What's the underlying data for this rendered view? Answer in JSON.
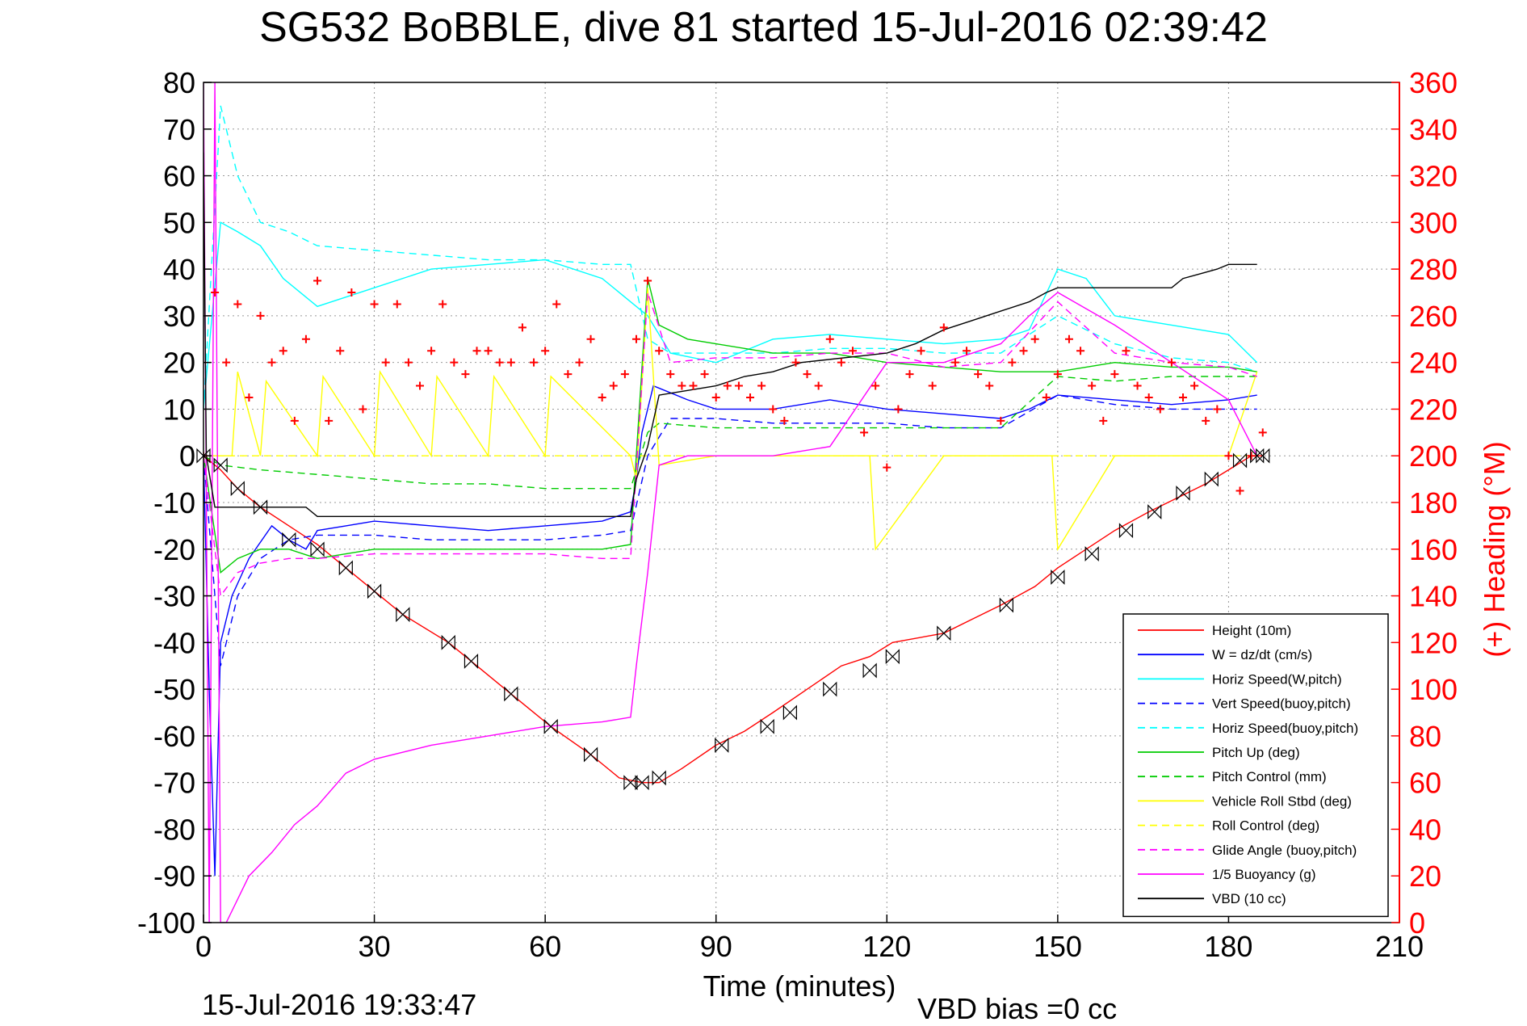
{
  "title": "SG532 BoBBLE, dive 81 started 15-Jul-2016 02:39:42",
  "footer": {
    "timestamp": "15-Jul-2016 19:33:47",
    "vbd_bias": "VBD bias =0 cc"
  },
  "chart_data": {
    "type": "line",
    "title": "SG532 BoBBLE, dive 81 started 15-Jul-2016 02:39:42",
    "xlabel": "Time (minutes)",
    "ylabel": "",
    "y2label": "(+) Heading (°M)",
    "xlim": [
      0,
      210
    ],
    "ylim": [
      -100,
      80
    ],
    "y2lim": [
      0,
      360
    ],
    "x_ticks": [
      "0",
      "30",
      "60",
      "90",
      "120",
      "150",
      "180",
      "210"
    ],
    "y_ticks": [
      "80",
      "70",
      "60",
      "50",
      "40",
      "30",
      "20",
      "10",
      "0",
      "-10",
      "-20",
      "-30",
      "-40",
      "-50",
      "-60",
      "-70",
      "-80",
      "-90",
      "-100"
    ],
    "y2_ticks": [
      "360",
      "340",
      "320",
      "300",
      "280",
      "260",
      "240",
      "220",
      "200",
      "180",
      "160",
      "140",
      "120",
      "100",
      "80",
      "60",
      "40",
      "20",
      "0"
    ],
    "grid": true,
    "legend_position": "bottom-right",
    "colors": {
      "axis_left": "#000000",
      "axis_right": "#ff0000",
      "title": "#000000"
    },
    "series": [
      {
        "name": "Height (10m)",
        "color": "#ff0000",
        "dash": "solid",
        "marker": "bowtie",
        "x": [
          0,
          3,
          6,
          10,
          15,
          20,
          25,
          30,
          35,
          43,
          47,
          54,
          61,
          68,
          73,
          77,
          80,
          84,
          90,
          95,
          100,
          106,
          112,
          117,
          121,
          130,
          135,
          140,
          146,
          150,
          155,
          160,
          166,
          171,
          176,
          180,
          184,
          186
        ],
        "y": [
          0,
          -3,
          -7,
          -11,
          -15,
          -19,
          -24,
          -29,
          -34,
          -40,
          -44,
          -51,
          -58,
          -64,
          -69,
          -70,
          -70,
          -67,
          -62,
          -59,
          -55,
          -50,
          -45,
          -43,
          -40,
          -38,
          -35,
          -32,
          -28,
          -24,
          -20,
          -16,
          -12,
          -9,
          -6,
          -3,
          0,
          0
        ]
      },
      {
        "name": "W = dz/dt (cm/s)",
        "color": "#0000ff",
        "dash": "solid",
        "x": [
          0,
          1,
          2,
          3,
          5,
          8,
          12,
          15,
          18,
          20,
          25,
          30,
          40,
          50,
          60,
          70,
          75,
          76,
          77,
          79,
          81,
          85,
          90,
          100,
          110,
          120,
          130,
          140,
          145,
          150,
          160,
          170,
          180,
          185
        ],
        "y": [
          0,
          -50,
          -90,
          -40,
          -30,
          -22,
          -15,
          -18,
          -20,
          -16,
          -15,
          -14,
          -15,
          -16,
          -15,
          -14,
          -12,
          -5,
          5,
          15,
          14,
          12,
          10,
          10,
          12,
          10,
          9,
          8,
          10,
          13,
          12,
          11,
          12,
          13
        ]
      },
      {
        "name": "Horiz Speed(W,pitch)",
        "color": "#00ffff",
        "dash": "solid",
        "x": [
          0,
          3,
          6,
          10,
          14,
          20,
          30,
          40,
          50,
          60,
          70,
          75,
          78,
          82,
          90,
          100,
          110,
          120,
          130,
          140,
          145,
          150,
          155,
          160,
          170,
          180,
          185
        ],
        "y": [
          10,
          50,
          48,
          45,
          38,
          32,
          36,
          40,
          41,
          42,
          38,
          33,
          30,
          22,
          20,
          25,
          26,
          25,
          24,
          25,
          27,
          40,
          38,
          30,
          28,
          26,
          20
        ]
      },
      {
        "name": "Vert Speed(buoy,pitch)",
        "color": "#0000ff",
        "dash": "dashed",
        "x": [
          0,
          3,
          6,
          10,
          15,
          20,
          30,
          40,
          50,
          60,
          70,
          75,
          78,
          82,
          90,
          100,
          110,
          120,
          130,
          140,
          150,
          160,
          170,
          180,
          185
        ],
        "y": [
          0,
          -45,
          -30,
          -22,
          -18,
          -17,
          -17,
          -18,
          -18,
          -18,
          -17,
          -16,
          0,
          8,
          8,
          7,
          7,
          7,
          6,
          6,
          13,
          11,
          10,
          10,
          10
        ]
      },
      {
        "name": "Horiz Speed(buoy,pitch)",
        "color": "#00ffff",
        "dash": "dashed",
        "x": [
          0,
          3,
          6,
          10,
          15,
          20,
          30,
          40,
          50,
          60,
          70,
          75,
          78,
          82,
          90,
          100,
          110,
          120,
          130,
          140,
          150,
          160,
          170,
          180,
          185
        ],
        "y": [
          10,
          75,
          60,
          50,
          48,
          45,
          44,
          43,
          42,
          42,
          41,
          41,
          25,
          22,
          22,
          22,
          23,
          23,
          22,
          22,
          30,
          24,
          21,
          20,
          18
        ]
      },
      {
        "name": "Pitch Up (deg)",
        "color": "#00cc00",
        "dash": "solid",
        "x": [
          0,
          3,
          6,
          10,
          15,
          20,
          30,
          40,
          50,
          60,
          70,
          75,
          78,
          80,
          85,
          90,
          100,
          110,
          120,
          130,
          140,
          150,
          160,
          170,
          180,
          185
        ],
        "y": [
          0,
          -25,
          -22,
          -20,
          -20,
          -22,
          -20,
          -20,
          -20,
          -20,
          -20,
          -19,
          38,
          28,
          25,
          24,
          22,
          22,
          20,
          19,
          18,
          18,
          20,
          19,
          19,
          18
        ]
      },
      {
        "name": "Pitch Control (mm)",
        "color": "#00cc00",
        "dash": "dashed",
        "x": [
          0,
          3,
          10,
          20,
          30,
          40,
          50,
          60,
          70,
          75,
          78,
          80,
          90,
          100,
          110,
          120,
          130,
          140,
          150,
          160,
          170,
          180,
          185
        ],
        "y": [
          0,
          -2,
          -3,
          -4,
          -5,
          -6,
          -6,
          -7,
          -7,
          -7,
          5,
          7,
          6,
          6,
          6,
          6,
          6,
          6,
          17,
          16,
          17,
          17,
          17
        ]
      },
      {
        "name": "Vehicle Roll Stbd (deg)",
        "color": "#ffff00",
        "dash": "solid",
        "x": [
          0,
          5,
          6,
          10,
          11,
          20,
          21,
          30,
          31,
          40,
          41,
          50,
          51,
          60,
          61,
          75,
          76,
          78,
          80,
          90,
          100,
          110,
          117,
          118,
          130,
          140,
          149,
          150,
          160,
          170,
          180,
          185
        ],
        "y": [
          0,
          0,
          18,
          0,
          16,
          0,
          17,
          0,
          18,
          0,
          17,
          0,
          17,
          0,
          17,
          0,
          -5,
          36,
          -2,
          0,
          0,
          0,
          0,
          -20,
          0,
          0,
          0,
          -20,
          0,
          0,
          0,
          18
        ]
      },
      {
        "name": "Roll Control (deg)",
        "color": "#ffff00",
        "dash": "dashed",
        "x": [
          0,
          20,
          40,
          60,
          75,
          78,
          90,
          110,
          130,
          150,
          170,
          185
        ],
        "y": [
          0,
          0,
          0,
          0,
          0,
          0,
          0,
          0,
          0,
          0,
          0,
          0
        ]
      },
      {
        "name": "Glide Angle (buoy,pitch)",
        "color": "#ff00ff",
        "dash": "dashed",
        "x": [
          0,
          3,
          6,
          10,
          15,
          20,
          30,
          40,
          50,
          60,
          70,
          75,
          78,
          82,
          90,
          100,
          110,
          120,
          130,
          140,
          150,
          160,
          170,
          180,
          185
        ],
        "y": [
          0,
          -30,
          -25,
          -23,
          -22,
          -22,
          -21,
          -21,
          -21,
          -21,
          -22,
          -22,
          35,
          20,
          21,
          21,
          22,
          22,
          19,
          20,
          33,
          22,
          20,
          19,
          17
        ]
      },
      {
        "name": "1/5 Buoyancy (g)",
        "color": "#ff00ff",
        "dash": "solid",
        "x": [
          0,
          1,
          2,
          3,
          4,
          8,
          12,
          16,
          20,
          25,
          30,
          40,
          50,
          60,
          70,
          75,
          76,
          78,
          80,
          85,
          90,
          95,
          100,
          110,
          120,
          130,
          140,
          145,
          150,
          160,
          170,
          180,
          185
        ],
        "y": [
          80,
          -100,
          80,
          -100,
          -100,
          -90,
          -85,
          -79,
          -75,
          -68,
          -65,
          -62,
          -60,
          -58,
          -57,
          -56,
          -45,
          -25,
          -2,
          0,
          0,
          0,
          0,
          2,
          20,
          20,
          24,
          30,
          35,
          28,
          20,
          12,
          0
        ]
      },
      {
        "name": "VBD (10 cc)",
        "color": "#000000",
        "dash": "solid",
        "x": [
          0,
          0.5,
          2,
          2.5,
          3,
          10,
          18,
          20,
          30,
          40,
          50,
          60,
          70,
          75,
          76,
          78,
          80,
          85,
          90,
          95,
          100,
          105,
          120,
          125,
          130,
          135,
          140,
          145,
          148,
          150,
          160,
          170,
          172,
          175,
          178,
          180,
          185
        ],
        "y": [
          65,
          0,
          -11,
          -11,
          -11,
          -11,
          -11,
          -13,
          -13,
          -13,
          -13,
          -13,
          -13,
          -13,
          -5,
          2,
          13,
          14,
          15,
          17,
          18,
          20,
          22,
          24,
          27,
          29,
          31,
          33,
          35,
          36,
          36,
          36,
          38,
          39,
          40,
          41,
          41
        ]
      }
    ],
    "heading": {
      "name": "(+) Heading (°M)",
      "color": "#ff0000",
      "marker": "+",
      "x": [
        0,
        2,
        4,
        6,
        8,
        10,
        12,
        14,
        16,
        18,
        20,
        22,
        24,
        26,
        28,
        30,
        32,
        34,
        36,
        38,
        40,
        42,
        44,
        46,
        48,
        50,
        52,
        54,
        56,
        58,
        60,
        62,
        64,
        66,
        68,
        70,
        72,
        74,
        76,
        78,
        80,
        82,
        84,
        86,
        88,
        90,
        92,
        94,
        96,
        98,
        100,
        102,
        104,
        106,
        108,
        110,
        112,
        114,
        116,
        118,
        120,
        122,
        124,
        126,
        128,
        130,
        132,
        134,
        136,
        138,
        140,
        142,
        144,
        146,
        148,
        150,
        152,
        154,
        156,
        158,
        160,
        162,
        164,
        166,
        168,
        170,
        172,
        174,
        176,
        178,
        180,
        182,
        184,
        186
      ],
      "y": [
        200,
        270,
        240,
        265,
        225,
        260,
        240,
        245,
        215,
        250,
        275,
        215,
        245,
        270,
        220,
        265,
        240,
        265,
        240,
        230,
        245,
        265,
        240,
        235,
        245,
        245,
        240,
        240,
        255,
        240,
        245,
        265,
        235,
        240,
        250,
        225,
        230,
        235,
        250,
        275,
        245,
        235,
        230,
        230,
        235,
        225,
        230,
        230,
        225,
        230,
        220,
        215,
        240,
        235,
        230,
        250,
        240,
        245,
        210,
        230,
        195,
        220,
        235,
        245,
        230,
        255,
        240,
        245,
        235,
        230,
        215,
        240,
        245,
        250,
        225,
        235,
        250,
        245,
        230,
        215,
        235,
        245,
        230,
        225,
        220,
        240,
        225,
        230,
        215,
        220,
        200,
        185,
        200,
        210
      ]
    },
    "markers": {
      "x": [
        0,
        3,
        6,
        10,
        15,
        20,
        25,
        30,
        35,
        43,
        47,
        54,
        61,
        68,
        75,
        77,
        80,
        91,
        99,
        103,
        110,
        117,
        121,
        130,
        141,
        150,
        156,
        162,
        167,
        172,
        177,
        182,
        185,
        186
      ],
      "y": [
        0,
        -2,
        -7,
        -11,
        -18,
        -20,
        -24,
        -29,
        -34,
        -40,
        -44,
        -51,
        -58,
        -64,
        -70,
        -70,
        -69,
        -62,
        -58,
        -55,
        -50,
        -46,
        -43,
        -38,
        -32,
        -26,
        -21,
        -16,
        -12,
        -8,
        -5,
        -1,
        0,
        0
      ]
    }
  }
}
